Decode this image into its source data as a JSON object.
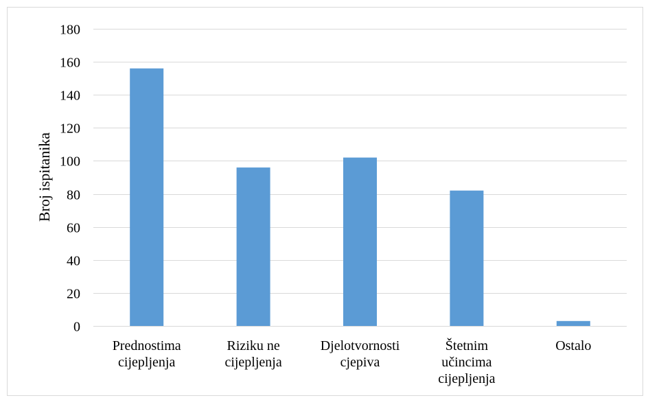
{
  "chart_data": {
    "type": "bar",
    "title": "",
    "xlabel": "",
    "ylabel": "Broj ispitanika",
    "ylim": [
      0,
      180
    ],
    "y_ticks": [
      0,
      20,
      40,
      60,
      80,
      100,
      120,
      140,
      160,
      180
    ],
    "grid": true,
    "legend": "none",
    "bar_color": "#5b9bd5",
    "categories": [
      [
        "Prednostima",
        "cijepljenja"
      ],
      [
        "Riziku ne",
        "cijepljenja"
      ],
      [
        "Djelotvornosti",
        "cjepiva"
      ],
      [
        "Štetnim",
        "učincima",
        "cijepljenja"
      ],
      [
        "Ostalo"
      ]
    ],
    "values": [
      156,
      96,
      102,
      82,
      3
    ]
  }
}
